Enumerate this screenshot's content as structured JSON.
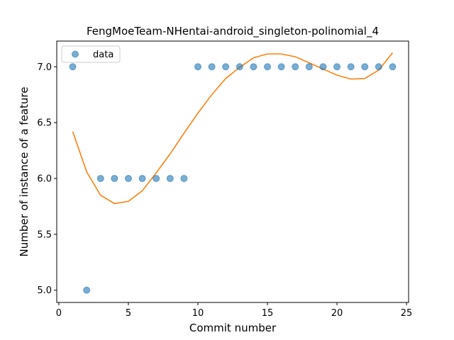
{
  "chart_data": {
    "type": "scatter",
    "title": "FengMoeTeam-NHentai-android_singleton-polinomial_4",
    "xlabel": "Commit number",
    "ylabel": "Number of instance of a feature",
    "xlim": [
      -0.15,
      25.15
    ],
    "ylim": [
      4.89,
      7.23
    ],
    "xticks": [
      0,
      5,
      10,
      15,
      20,
      25
    ],
    "yticks": [
      5.0,
      5.5,
      6.0,
      6.5,
      7.0
    ],
    "xtick_labels": [
      "0",
      "5",
      "10",
      "15",
      "20",
      "25"
    ],
    "ytick_labels": [
      "5.0",
      "5.5",
      "6.0",
      "6.5",
      "7.0"
    ],
    "grid": false,
    "legend_position": "top-left",
    "legend": [
      "data"
    ],
    "series": [
      {
        "name": "data",
        "kind": "scatter",
        "color": "#1f77b4",
        "x": [
          1,
          2,
          3,
          4,
          5,
          6,
          7,
          8,
          9,
          10,
          11,
          12,
          13,
          14,
          15,
          16,
          17,
          18,
          19,
          20,
          21,
          22,
          23,
          24
        ],
        "y": [
          7,
          5,
          6,
          6,
          6,
          6,
          6,
          6,
          6,
          7,
          7,
          7,
          7,
          7,
          7,
          7,
          7,
          7,
          7,
          7,
          7,
          7,
          7,
          7
        ]
      },
      {
        "kind": "line",
        "color": "#ff7f0e",
        "x": [
          1,
          2,
          3,
          4,
          5,
          6,
          7,
          8,
          9,
          10,
          11,
          12,
          13,
          14,
          15,
          16,
          17,
          18,
          19,
          20,
          21,
          22,
          23,
          24
        ],
        "y": [
          6.42,
          6.06,
          5.85,
          5.775,
          5.795,
          5.89,
          6.05,
          6.22,
          6.405,
          6.585,
          6.75,
          6.895,
          6.995,
          7.08,
          7.115,
          7.115,
          7.09,
          7.035,
          6.98,
          6.925,
          6.89,
          6.895,
          6.97,
          7.125
        ]
      }
    ]
  }
}
